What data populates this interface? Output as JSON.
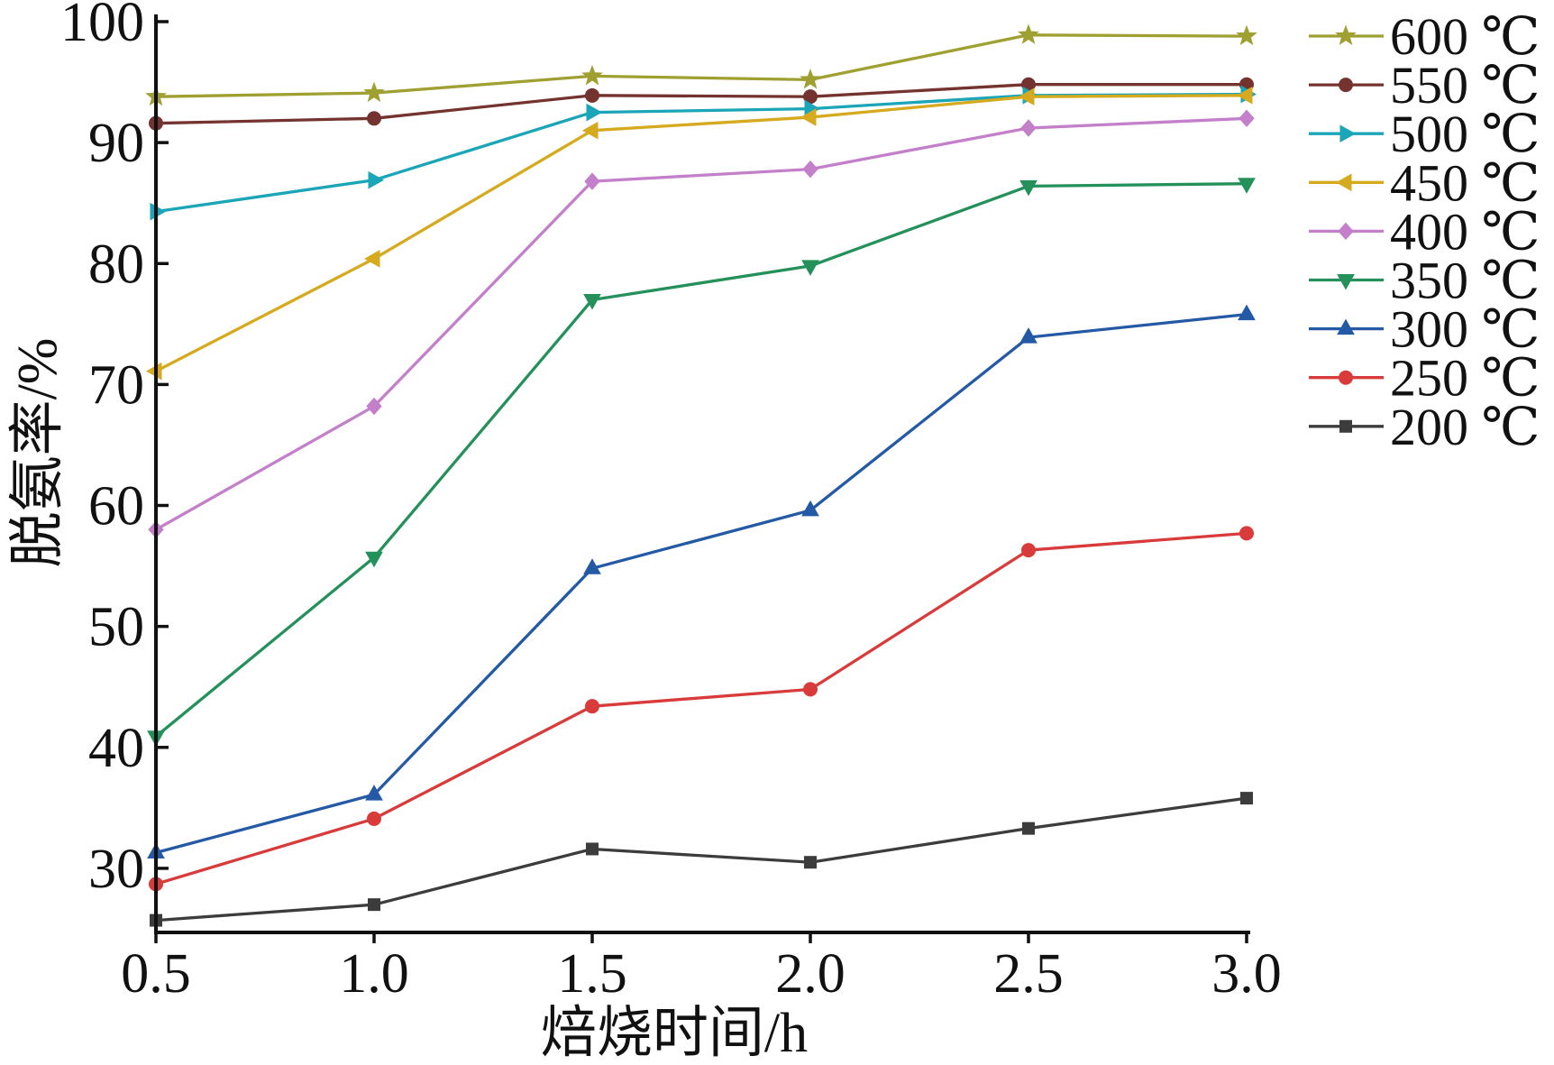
{
  "chart_data": {
    "type": "line",
    "xlabel": "焙烧时间/h",
    "ylabel": "脱氨率/%",
    "x": [
      0.5,
      1.0,
      1.5,
      2.0,
      2.5,
      3.0
    ],
    "x_tick_labels": [
      "0.5",
      "1.0",
      "1.5",
      "2.0",
      "2.5",
      "3.0"
    ],
    "y_ticks": [
      30,
      40,
      50,
      60,
      70,
      80,
      90,
      100
    ],
    "xlim": [
      0.5,
      3.0
    ],
    "ylim": [
      24.7,
      100
    ],
    "grid": false,
    "legend_position": "right",
    "series": [
      {
        "name": "600 ℃",
        "color": "#a0a032",
        "marker": "star",
        "values": [
          93.8,
          94.1,
          95.5,
          95.2,
          98.9,
          98.8
        ]
      },
      {
        "name": "550 ℃",
        "color": "#74332f",
        "marker": "circle",
        "values": [
          91.6,
          92.0,
          93.9,
          93.8,
          94.8,
          94.8
        ]
      },
      {
        "name": "500 ℃",
        "color": "#1aa6b8",
        "marker": "triangle-right",
        "values": [
          84.3,
          86.9,
          92.5,
          92.8,
          93.9,
          94.0
        ]
      },
      {
        "name": "450 ℃",
        "color": "#d6aa1e",
        "marker": "triangle-left",
        "values": [
          71.1,
          80.4,
          91.0,
          92.1,
          93.8,
          93.9
        ]
      },
      {
        "name": "400 ℃",
        "color": "#c47fcb",
        "marker": "diamond",
        "values": [
          58.0,
          68.2,
          86.8,
          87.8,
          91.2,
          92.0
        ]
      },
      {
        "name": "350 ℃",
        "color": "#24915a",
        "marker": "triangle-down",
        "values": [
          40.9,
          55.7,
          77.0,
          79.8,
          86.4,
          86.6
        ]
      },
      {
        "name": "300 ℃",
        "color": "#2459a6",
        "marker": "triangle-up",
        "values": [
          31.3,
          36.1,
          54.8,
          59.6,
          73.9,
          75.8
        ]
      },
      {
        "name": "250 ℃",
        "color": "#d93a3a",
        "marker": "circle",
        "values": [
          28.7,
          34.1,
          43.4,
          44.8,
          56.3,
          57.7
        ]
      },
      {
        "name": "200 ℃",
        "color": "#3c3c3c",
        "marker": "square",
        "values": [
          25.7,
          27.0,
          31.6,
          30.5,
          33.3,
          35.8
        ]
      }
    ]
  }
}
